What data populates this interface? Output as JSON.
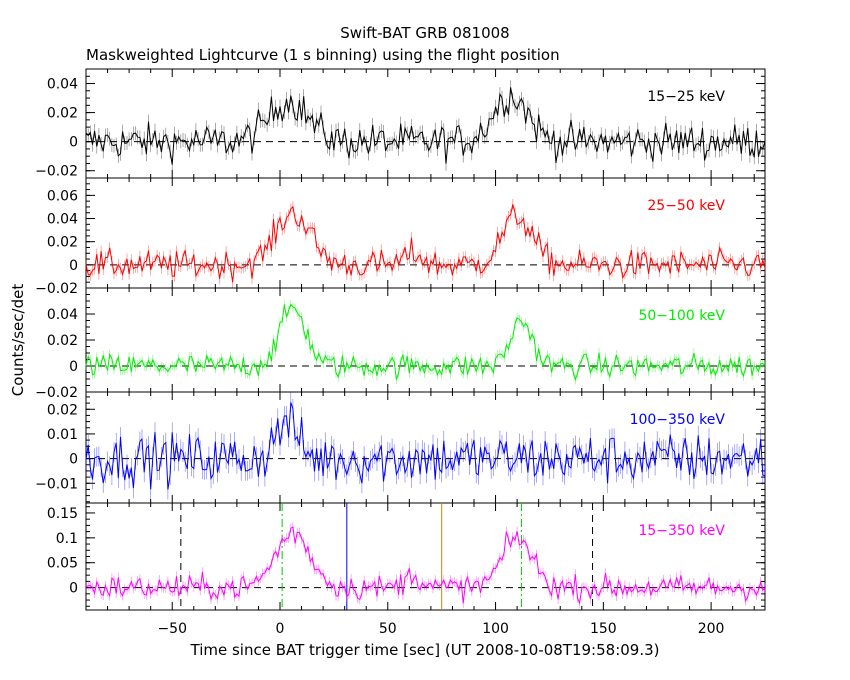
{
  "chart_data": {
    "type": "line",
    "title": "Swift-BAT GRB 081008",
    "subtitle": "Maskweighted Lightcurve (1 s binning) using the flight position",
    "xlabel": "Time since BAT trigger time [sec] (UT 2008-10-08T19:58:09.3)",
    "ylabel": "Counts/sec/det",
    "xlim": [
      -90,
      225
    ],
    "xticks": [
      -50,
      0,
      50,
      100,
      150,
      200
    ],
    "xtick_labels": [
      "−50",
      "0",
      "50",
      "100",
      "150",
      "200"
    ],
    "grid": false,
    "baseline_style": "dashed",
    "panels": [
      {
        "band": "15−25 keV",
        "color": "#000000",
        "ylim": [
          -0.025,
          0.05
        ],
        "yticks": [
          -0.02,
          0,
          0.02,
          0.04
        ],
        "ytick_labels": [
          "−0.02",
          "0",
          "0.02",
          "0.04"
        ],
        "noise": 0.006,
        "pulses": [
          {
            "t": 4,
            "amp": 0.028,
            "w": 9
          },
          {
            "t": 107,
            "amp": 0.032,
            "w": 8
          }
        ]
      },
      {
        "band": "25−50 keV",
        "color": "#ff0000",
        "ylim": [
          -0.02,
          0.075
        ],
        "yticks": [
          -0.02,
          0,
          0.02,
          0.04,
          0.06
        ],
        "ytick_labels": [
          "−0.02",
          "0",
          "0.02",
          "0.04",
          "0.06"
        ],
        "noise": 0.006,
        "pulses": [
          {
            "t": 6,
            "amp": 0.045,
            "w": 8
          },
          {
            "t": 62,
            "amp": 0.01,
            "w": 4
          },
          {
            "t": 110,
            "amp": 0.042,
            "w": 7
          }
        ]
      },
      {
        "band": "50−100 keV",
        "color": "#00ee00",
        "ylim": [
          -0.02,
          0.06
        ],
        "yticks": [
          -0.02,
          0,
          0.02,
          0.04
        ],
        "ytick_labels": [
          "−0.02",
          "0",
          "0.02",
          "0.04"
        ],
        "noise": 0.0045,
        "pulses": [
          {
            "t": 6,
            "amp": 0.045,
            "w": 6
          },
          {
            "t": 112,
            "amp": 0.035,
            "w": 5
          }
        ]
      },
      {
        "band": "100−350 keV",
        "color": "#0000ff",
        "ylim": [
          -0.018,
          0.027
        ],
        "yticks": [
          -0.01,
          0,
          0.01,
          0.02
        ],
        "ytick_labels": [
          "−0.01",
          "0",
          "0.01",
          "0.02"
        ],
        "noise": 0.005,
        "pulses": [
          {
            "t": 3,
            "amp": 0.015,
            "w": 5
          }
        ]
      },
      {
        "band": "15−350 keV",
        "color": "#ff00ff",
        "ylim": [
          -0.045,
          0.17
        ],
        "yticks": [
          0,
          0.05,
          0.1,
          0.15
        ],
        "ytick_labels": [
          "0",
          "0.05",
          "0.1",
          "0.15"
        ],
        "noise": 0.012,
        "pulses": [
          {
            "t": 6,
            "amp": 0.11,
            "w": 8
          },
          {
            "t": 62,
            "amp": 0.025,
            "w": 4
          },
          {
            "t": 110,
            "amp": 0.1,
            "w": 7
          }
        ]
      }
    ],
    "markers": [
      {
        "x": -46,
        "style": "dashed",
        "color": "#000000"
      },
      {
        "x": 1,
        "style": "dashdot",
        "color": "#00cc00"
      },
      {
        "x": 31,
        "style": "solid",
        "color": "#0000ff"
      },
      {
        "x": 75,
        "style": "solid",
        "color": "#cc8800"
      },
      {
        "x": 112,
        "style": "dashdot",
        "color": "#00cc00"
      },
      {
        "x": 145,
        "style": "dashed",
        "color": "#000000"
      }
    ]
  }
}
